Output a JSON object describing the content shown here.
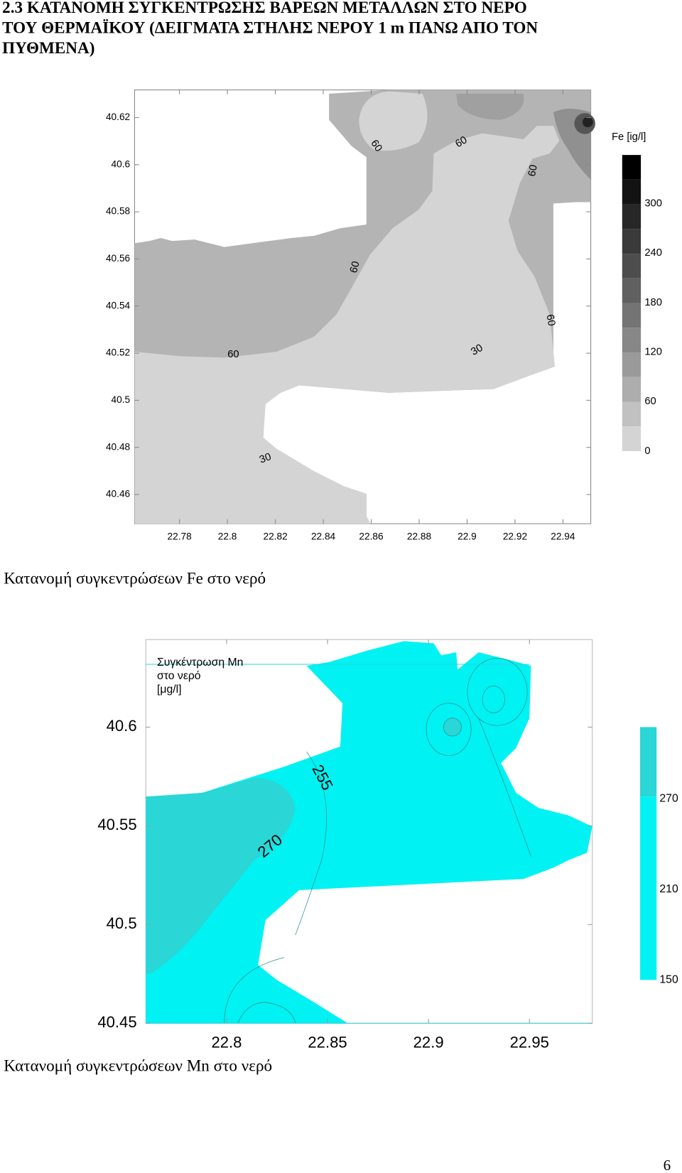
{
  "heading": [
    "2.3 ΚΑΤΑΝΟΜΗ ΣΥΓΚΕΝΤΡΩΣΗΣ ΒΑΡΕΩΝ ΜΕΤΑΛΛΩΝ ΣΤΟ ΝΕΡΟ",
    "ΤΟΥ ΘΕΡΜΑΪΚΟΥ (ΔΕΙΓΜΑΤΑ ΣΤΗΛΗΣ ΝΕΡΟΥ 1 m ΠΑΝΩ ΑΠΟ ΤΟΝ",
    "ΠΥΘΜΕΝΑ)"
  ],
  "fe_map": {
    "yticks": [
      "40.62",
      "40.6",
      "40.58",
      "40.56",
      "40.54",
      "40.52",
      "40.5",
      "40.48",
      "40.46"
    ],
    "xticks": [
      "22.78",
      "22.8",
      "22.82",
      "22.84",
      "22.86",
      "22.88",
      "22.9",
      "22.92",
      "22.94"
    ],
    "contour_labels": [
      "60",
      "60",
      "60",
      "60",
      "60",
      "60",
      "30",
      "30"
    ],
    "legend_title": "Fe [ig/l]",
    "legend_labels": [
      "300",
      "240",
      "180",
      "120",
      "60",
      "0"
    ],
    "caption": "Κατανομή συγκεντρώσεων Fe στο νερό"
  },
  "mn_map": {
    "yticks": [
      "40.6",
      "40.55",
      "40.5",
      "40.45"
    ],
    "xticks": [
      "22.8",
      "22.85",
      "22.9",
      "22.95"
    ],
    "legend_title": [
      "Συγκέντρωση Mn",
      "στο νερό",
      "[μg/l]"
    ],
    "contour_labels": [
      "255",
      "270"
    ],
    "legend_labels": [
      "270",
      "210",
      "150"
    ],
    "caption": "Κατανομή συγκεντρώσεων Mn στο νερό"
  },
  "page_number": "6"
}
